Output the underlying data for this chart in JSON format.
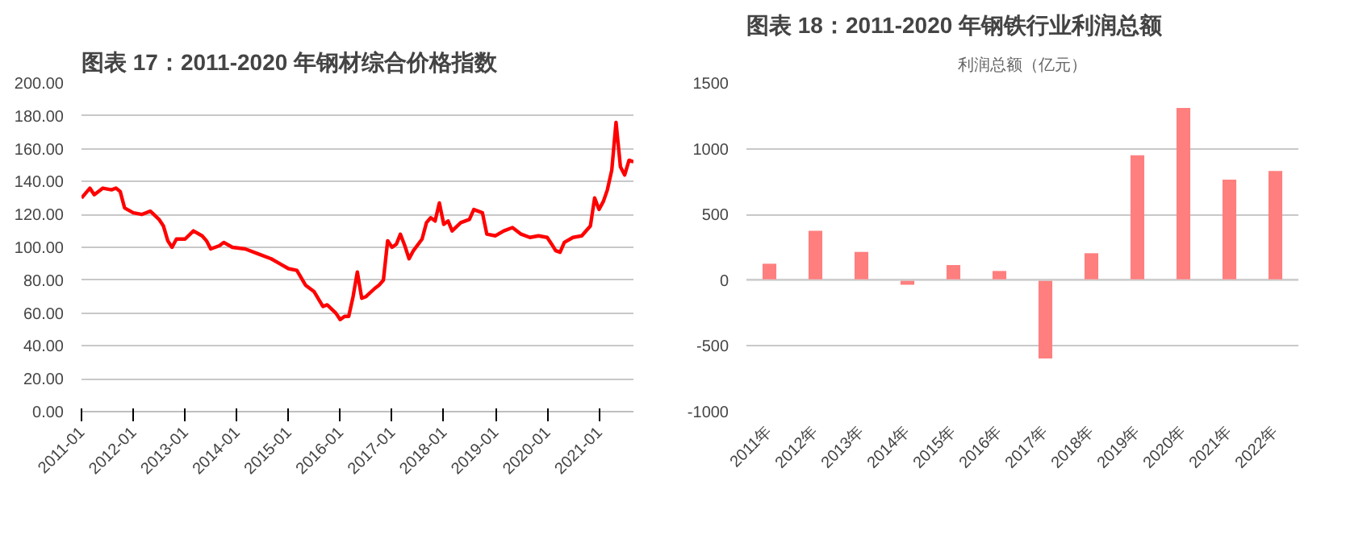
{
  "chart_data": [
    {
      "type": "line",
      "title": "图表 17：2011-2020 年钢材综合价格指数",
      "x": [
        "2011-01",
        "2011-03",
        "2011-04",
        "2011-06",
        "2011-08",
        "2011-09",
        "2011-10",
        "2011-11",
        "2012-01",
        "2012-03",
        "2012-05",
        "2012-07",
        "2012-08",
        "2012-09",
        "2012-10",
        "2012-11",
        "2013-01",
        "2013-03",
        "2013-05",
        "2013-06",
        "2013-07",
        "2013-09",
        "2013-10",
        "2013-12",
        "2014-03",
        "2014-06",
        "2014-09",
        "2014-11",
        "2015-01",
        "2015-03",
        "2015-05",
        "2015-07",
        "2015-09",
        "2015-10",
        "2015-12",
        "2016-01",
        "2016-02",
        "2016-03",
        "2016-04",
        "2016-05",
        "2016-06",
        "2016-07",
        "2016-09",
        "2016-10",
        "2016-11",
        "2016-12",
        "2017-01",
        "2017-02",
        "2017-03",
        "2017-04",
        "2017-05",
        "2017-06",
        "2017-08",
        "2017-09",
        "2017-10",
        "2017-11",
        "2017-12",
        "2018-01",
        "2018-02",
        "2018-03",
        "2018-05",
        "2018-07",
        "2018-08",
        "2018-10",
        "2018-11",
        "2019-01",
        "2019-03",
        "2019-05",
        "2019-07",
        "2019-09",
        "2019-11",
        "2020-01",
        "2020-02",
        "2020-03",
        "2020-04",
        "2020-05",
        "2020-07",
        "2020-09",
        "2020-11",
        "2020-12",
        "2021-01",
        "2021-02",
        "2021-03",
        "2021-04",
        "2021-05",
        "2021-06",
        "2021-07",
        "2021-08",
        "2021-09"
      ],
      "series": [
        {
          "color": "#ff0000",
          "values": [
            130,
            136,
            132,
            136,
            135,
            136,
            134,
            124,
            121,
            120,
            122,
            117,
            113,
            104,
            100,
            105,
            105,
            110,
            107,
            104,
            99,
            101,
            103,
            100,
            99,
            96,
            93,
            90,
            87,
            86,
            77,
            73,
            64,
            65,
            60,
            56,
            58,
            58,
            70,
            85,
            69,
            70,
            75,
            77,
            80,
            104,
            100,
            102,
            108,
            101,
            93,
            98,
            105,
            115,
            118,
            116,
            127,
            114,
            116,
            110,
            115,
            117,
            123,
            121,
            108,
            107,
            110,
            112,
            108,
            106,
            107,
            106,
            102,
            98,
            97,
            103,
            106,
            107,
            113,
            130,
            123,
            128,
            135,
            147,
            176,
            149,
            144,
            153,
            152
          ]
        }
      ],
      "xlim": [
        "2011-01",
        "2021-09"
      ],
      "xticks": [
        {
          "value": "2011-01",
          "label": "2011-01"
        },
        {
          "value": "2012-01",
          "label": "2012-01"
        },
        {
          "value": "2013-01",
          "label": "2013-01"
        },
        {
          "value": "2014-01",
          "label": "2014-01"
        },
        {
          "value": "2015-01",
          "label": "2015-01"
        },
        {
          "value": "2016-01",
          "label": "2016-01"
        },
        {
          "value": "2017-01",
          "label": "2017-01"
        },
        {
          "value": "2018-01",
          "label": "2018-01"
        },
        {
          "value": "2019-01",
          "label": "2019-01"
        },
        {
          "value": "2020-01",
          "label": "2020-01"
        },
        {
          "value": "2021-01",
          "label": "2021-01"
        }
      ],
      "ylim": [
        0,
        200
      ],
      "yticks": [
        {
          "value": 0,
          "label": "0.00"
        },
        {
          "value": 20,
          "label": "20.00"
        },
        {
          "value": 40,
          "label": "40.00"
        },
        {
          "value": 60,
          "label": "60.00"
        },
        {
          "value": 80,
          "label": "80.00"
        },
        {
          "value": 100,
          "label": "100.00"
        },
        {
          "value": 120,
          "label": "120.00"
        },
        {
          "value": 140,
          "label": "140.00"
        },
        {
          "value": 160,
          "label": "160.00"
        },
        {
          "value": 180,
          "label": "180.00"
        },
        {
          "value": 200,
          "label": "200.00"
        }
      ],
      "grid": "y"
    },
    {
      "type": "bar",
      "title": "图表 18：2011-2020 年钢铁行业利润总额",
      "subtitle": "利润总额（亿元）",
      "categories": [
        "2011年",
        "2012年",
        "2013年",
        "2014年",
        "2015年",
        "2016年",
        "2017年",
        "2018年",
        "2019年",
        "2020年",
        "2021年",
        "2022年"
      ],
      "series": [
        {
          "color": "#ff7f7f",
          "values": [
            125,
            375,
            215,
            -35,
            115,
            70,
            -595,
            205,
            950,
            1310,
            765,
            830
          ]
        }
      ],
      "ylim": [
        -1000,
        1500
      ],
      "yticks": [
        -1000,
        -500,
        0,
        500,
        1000,
        1500
      ],
      "grid": "y"
    }
  ]
}
